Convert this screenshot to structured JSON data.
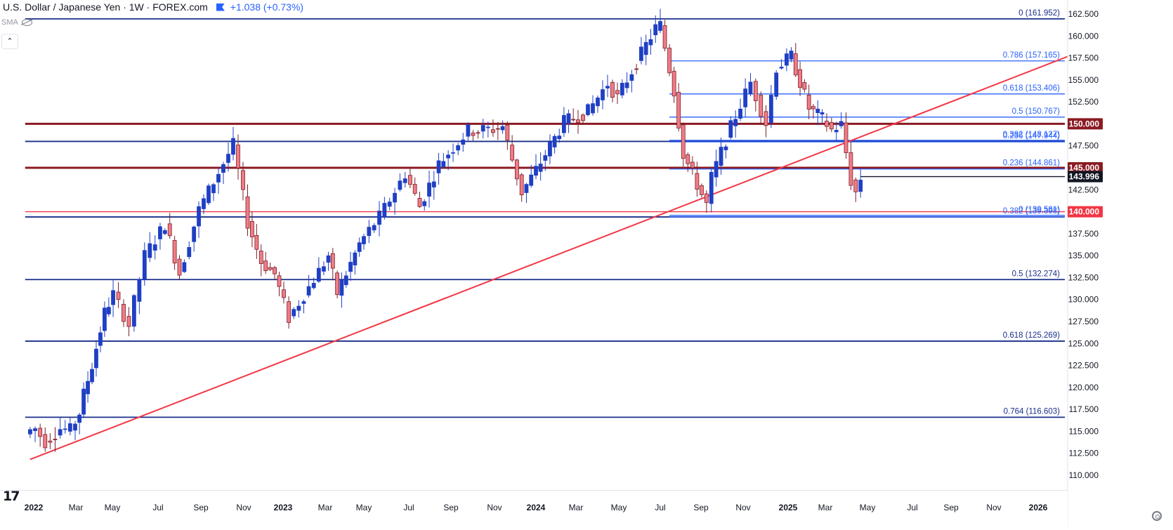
{
  "header": {
    "symbol_title": "U.S. Dollar / Japanese Yen · 1W · FOREX.com",
    "change": "+1.038 (+0.73%)",
    "indicator": "SMA",
    "collapse_icon": "chevron-up-icon",
    "eye_icon": "eye-crossed-icon"
  },
  "colors": {
    "up": "#1f3fc4",
    "down_fill": "#f07c86",
    "down_border": "#7a1f29",
    "fib_line": "#2962ff",
    "fib_label": "#2962ff",
    "major_line": "#1a2f8a",
    "resistance": "#8b1a22",
    "light_red": "#f23645",
    "trendline": "#f23645",
    "axis_text": "#131722"
  },
  "chart_data": {
    "type": "candlestick",
    "title": "U.S. Dollar / Japanese Yen · 1W · FOREX.com",
    "ylim": [
      110.0,
      162.5
    ],
    "y_ticks": [
      "162.500",
      "160.000",
      "157.500",
      "155.000",
      "152.500",
      "150.000",
      "147.500",
      "145.000",
      "142.500",
      "140.000",
      "137.500",
      "135.000",
      "132.500",
      "130.000",
      "127.500",
      "125.000",
      "122.500",
      "120.000",
      "117.500",
      "115.000",
      "112.500",
      "110.000"
    ],
    "x_ticks": [
      "2022",
      "Mar",
      "May",
      "Jul",
      "Sep",
      "Nov",
      "2023",
      "Mar",
      "May",
      "Jul",
      "Sep",
      "Nov",
      "2024",
      "Mar",
      "May",
      "Jul",
      "Sep",
      "Nov",
      "2025",
      "Mar",
      "May",
      "Jul",
      "Sep",
      "Nov",
      "2026"
    ],
    "x_tick_dates": [
      "2022-01-01",
      "2022-03-01",
      "2022-05-01",
      "2022-07-01",
      "2022-09-01",
      "2022-11-01",
      "2023-01-01",
      "2023-03-01",
      "2023-05-01",
      "2023-07-01",
      "2023-09-01",
      "2023-11-01",
      "2024-01-01",
      "2024-03-01",
      "2024-05-01",
      "2024-07-01",
      "2024-09-01",
      "2024-11-01",
      "2025-01-01",
      "2025-03-01",
      "2025-05-01",
      "2025-07-01",
      "2025-09-01",
      "2025-11-01",
      "2026-01-01"
    ],
    "bold_x_ticks": [
      "2022",
      "2023",
      "2024",
      "2025",
      "2026"
    ],
    "key_points": [
      {
        "date": "2021-12-27",
        "close": 115.1
      },
      {
        "date": "2022-01-03",
        "close": 115.3
      },
      {
        "date": "2022-01-17",
        "close": 113.8
      },
      {
        "date": "2022-02-07",
        "close": 115.3
      },
      {
        "date": "2022-02-21",
        "close": 115.1
      },
      {
        "date": "2022-03-07",
        "close": 117.1
      },
      {
        "date": "2022-03-14",
        "close": 119.2
      },
      {
        "date": "2022-03-28",
        "close": 122.5
      },
      {
        "date": "2022-04-18",
        "close": 128.5
      },
      {
        "date": "2022-05-02",
        "close": 130.6
      },
      {
        "date": "2022-05-23",
        "close": 127.1
      },
      {
        "date": "2022-06-13",
        "close": 135.0
      },
      {
        "date": "2022-07-11",
        "close": 138.6
      },
      {
        "date": "2022-08-01",
        "close": 133.0
      },
      {
        "date": "2022-08-29",
        "close": 140.2
      },
      {
        "date": "2022-09-19",
        "close": 143.4
      },
      {
        "date": "2022-10-17",
        "close": 147.6
      },
      {
        "date": "2022-11-07",
        "close": 138.8
      },
      {
        "date": "2022-11-28",
        "close": 134.3
      },
      {
        "date": "2022-12-19",
        "close": 132.9
      },
      {
        "date": "2023-01-09",
        "close": 127.9
      },
      {
        "date": "2023-02-06",
        "close": 131.4
      },
      {
        "date": "2023-03-06",
        "close": 135.0
      },
      {
        "date": "2023-03-20",
        "close": 130.7
      },
      {
        "date": "2023-04-24",
        "close": 136.3
      },
      {
        "date": "2023-05-22",
        "close": 139.4
      },
      {
        "date": "2023-06-26",
        "close": 144.3
      },
      {
        "date": "2023-07-17",
        "close": 140.6
      },
      {
        "date": "2023-08-14",
        "close": 145.4
      },
      {
        "date": "2023-09-25",
        "close": 149.2
      },
      {
        "date": "2023-10-30",
        "close": 149.4
      },
      {
        "date": "2023-11-13",
        "close": 149.7
      },
      {
        "date": "2023-12-11",
        "close": 142.2
      },
      {
        "date": "2024-01-01",
        "close": 144.7
      },
      {
        "date": "2024-02-12",
        "close": 150.2
      },
      {
        "date": "2024-03-18",
        "close": 151.4
      },
      {
        "date": "2024-04-15",
        "close": 154.6
      },
      {
        "date": "2024-04-29",
        "close": 153.0
      },
      {
        "date": "2024-05-27",
        "close": 157.0
      },
      {
        "date": "2024-06-24",
        "close": 160.9
      },
      {
        "date": "2024-07-01",
        "close": 161.2
      },
      {
        "date": "2024-07-22",
        "close": 153.7
      },
      {
        "date": "2024-08-05",
        "close": 146.6
      },
      {
        "date": "2024-09-09",
        "close": 140.8
      },
      {
        "date": "2024-09-16",
        "close": 143.9
      },
      {
        "date": "2024-10-14",
        "close": 149.6
      },
      {
        "date": "2024-11-11",
        "close": 154.7
      },
      {
        "date": "2024-12-02",
        "close": 150.1
      },
      {
        "date": "2024-12-16",
        "close": 156.4
      },
      {
        "date": "2025-01-06",
        "close": 157.7
      },
      {
        "date": "2025-02-03",
        "close": 151.8
      },
      {
        "date": "2025-02-24",
        "close": 150.6
      },
      {
        "date": "2025-03-10",
        "close": 149.3
      },
      {
        "date": "2025-03-24",
        "close": 149.9
      },
      {
        "date": "2025-04-07",
        "close": 143.5
      },
      {
        "date": "2025-04-14",
        "close": 142.2
      },
      {
        "date": "2025-04-21",
        "close": 143.6
      }
    ],
    "horizontal_levels": [
      {
        "price": 150.0,
        "style": "resistance",
        "label": "150.000",
        "x_start": "2021-12-20"
      },
      {
        "price": 145.0,
        "style": "resistance",
        "label": "145.000",
        "x_start": "2021-12-20"
      },
      {
        "price": 140.0,
        "style": "light_red",
        "label": "140.000",
        "x_start": "2021-12-20"
      },
      {
        "price": 148.0,
        "style": "major",
        "label": "",
        "x_start": "2021-12-20"
      },
      {
        "price": 139.4,
        "style": "major",
        "label": "",
        "x_start": "2021-12-20"
      },
      {
        "price": 132.274,
        "style": "major",
        "label": "0.5 (132.274)",
        "x_start": "2021-12-20"
      },
      {
        "price": 125.269,
        "style": "major",
        "label": "0.618 (125.269)",
        "x_start": "2021-12-20"
      },
      {
        "price": 116.603,
        "style": "major",
        "label": "0.764 (116.603)",
        "x_start": "2021-12-20"
      },
      {
        "price": 161.952,
        "style": "major",
        "label": "0 (161.952)",
        "x_start": "2021-12-20"
      },
      {
        "price": 157.165,
        "style": "fib",
        "label": "0.786 (157.165)",
        "x_start": "2024-07-15"
      },
      {
        "price": 153.406,
        "style": "fib",
        "label": "0.618 (153.406)",
        "x_start": "2024-07-15"
      },
      {
        "price": 150.767,
        "style": "fib",
        "label": "0.5 (150.767)",
        "x_start": "2024-07-15"
      },
      {
        "price": 148.127,
        "style": "fib",
        "label": "0.382 (148.127)",
        "x_start": "2024-07-15"
      },
      {
        "price": 147.944,
        "style": "fib",
        "label": "0.236 (147.944)",
        "x_start": "2024-07-15"
      },
      {
        "price": 144.861,
        "style": "fib",
        "label": "0.236 (144.861)",
        "x_start": "2024-07-15"
      },
      {
        "price": 139.581,
        "style": "fib",
        "label": "0 (139.581)",
        "x_start": "2024-07-15"
      },
      {
        "price": 139.398,
        "style": "fib",
        "label": "0.382 (139.398)",
        "x_start": "2024-07-15"
      }
    ],
    "trendline": {
      "from": {
        "date": "2021-12-27",
        "price": 111.8
      },
      "to": {
        "date": "2025-10-06",
        "price": 153.6
      }
    },
    "price_labels": [
      {
        "label": "150.000",
        "price": 150.0,
        "bg": "#8b1a22",
        "fg": "#ffffff"
      },
      {
        "label": "145.000",
        "price": 145.0,
        "bg": "#8b1a22",
        "fg": "#ffffff"
      },
      {
        "label": "143.996",
        "price": 143.996,
        "bg": "#131722",
        "fg": "#ffffff"
      },
      {
        "label": "140.000",
        "price": 140.0,
        "bg": "#f23645",
        "fg": "#ffffff"
      }
    ],
    "last_price_line": {
      "price": 143.996,
      "from": "2025-04-21",
      "to": "2025-05-26"
    }
  }
}
